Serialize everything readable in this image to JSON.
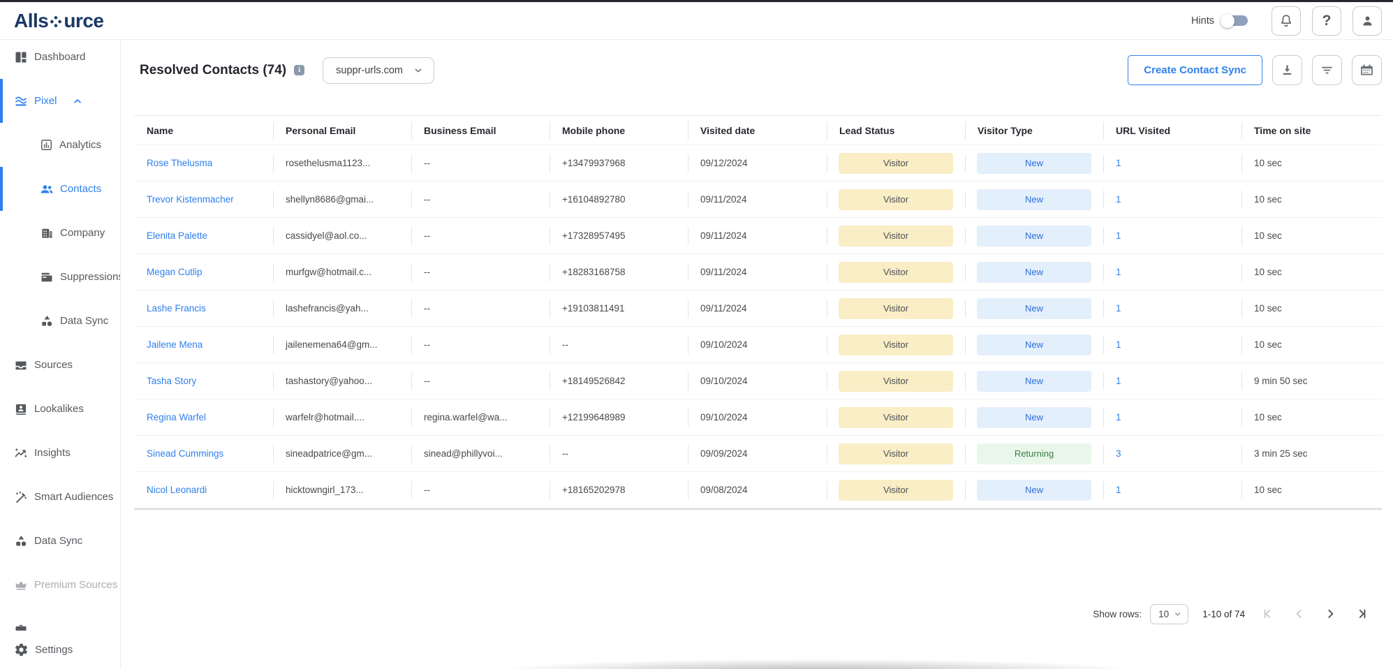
{
  "colors": {
    "brand_navy": "#1B3866",
    "accent_blue": "#2F80ED",
    "pill_visitor_bg": "#FAEEC6",
    "pill_new_bg": "#E4EFFC",
    "pill_new_text": "#2C6FDC",
    "pill_returning_bg": "#E9F7EB",
    "pill_returning_text": "#3A7D3F"
  },
  "topbar": {
    "logo_pre": "Alls",
    "logo_post": "urce",
    "hints_label": "Hints",
    "hints_on": false
  },
  "sidebar": {
    "items": [
      {
        "label": "Dashboard",
        "icon": "dashboard",
        "indent": false,
        "active": false
      },
      {
        "label": "Pixel",
        "icon": "waves",
        "indent": false,
        "active": true,
        "expanded": true
      },
      {
        "label": "Analytics",
        "icon": "bar-chart",
        "indent": true,
        "active": false
      },
      {
        "label": "Contacts",
        "icon": "people",
        "indent": true,
        "active": true
      },
      {
        "label": "Company",
        "icon": "building",
        "indent": true,
        "active": false
      },
      {
        "label": "Suppressions",
        "icon": "wallet",
        "indent": true,
        "active": false
      },
      {
        "label": "Data Sync",
        "icon": "shapes",
        "indent": true,
        "active": false
      },
      {
        "label": "Sources",
        "icon": "inbox",
        "indent": false,
        "active": false
      },
      {
        "label": "Lookalikes",
        "icon": "contact-card",
        "indent": false,
        "active": false
      },
      {
        "label": "Insights",
        "icon": "trend",
        "indent": false,
        "active": false
      },
      {
        "label": "Smart Audiences",
        "icon": "wand",
        "indent": false,
        "active": false
      },
      {
        "label": "Data Sync",
        "icon": "shapes",
        "indent": false,
        "active": false
      },
      {
        "label": "Premium Sources",
        "icon": "crown",
        "indent": false,
        "active": false,
        "disabled": true
      },
      {
        "label": "",
        "icon": "briefcase",
        "indent": false,
        "active": false,
        "clipped": true
      }
    ],
    "settings": {
      "label": "Settings",
      "icon": "gear"
    }
  },
  "header": {
    "title": "Resolved Contacts (74)",
    "domain": "suppr-urls.com",
    "create_button": "Create Contact Sync"
  },
  "table": {
    "columns": [
      {
        "key": "name",
        "label": "Name"
      },
      {
        "key": "personal_email",
        "label": "Personal Email"
      },
      {
        "key": "business_email",
        "label": "Business Email"
      },
      {
        "key": "mobile_phone",
        "label": "Mobile phone"
      },
      {
        "key": "visited_date",
        "label": "Visited date"
      },
      {
        "key": "lead_status",
        "label": "Lead Status"
      },
      {
        "key": "visitor_type",
        "label": "Visitor Type"
      },
      {
        "key": "url_visited",
        "label": "URL Visited"
      },
      {
        "key": "time_on_site",
        "label": "Time on site"
      }
    ],
    "rows": [
      {
        "name": "Rose Thelusma",
        "personal_email": "rosethelusma1123...",
        "business_email": "--",
        "mobile_phone": "+13479937968",
        "visited_date": "09/12/2024",
        "lead_status": "Visitor",
        "visitor_type": "New",
        "url_visited": "1",
        "time_on_site": "10 sec"
      },
      {
        "name": "Trevor Kistenmacher",
        "personal_email": "shellyn8686@gmai...",
        "business_email": "--",
        "mobile_phone": "+16104892780",
        "visited_date": "09/11/2024",
        "lead_status": "Visitor",
        "visitor_type": "New",
        "url_visited": "1",
        "time_on_site": "10 sec"
      },
      {
        "name": "Elenita Palette",
        "personal_email": "cassidyel@aol.co...",
        "business_email": "--",
        "mobile_phone": "+17328957495",
        "visited_date": "09/11/2024",
        "lead_status": "Visitor",
        "visitor_type": "New",
        "url_visited": "1",
        "time_on_site": "10 sec"
      },
      {
        "name": "Megan Cutlip",
        "personal_email": "murfgw@hotmail.c...",
        "business_email": "--",
        "mobile_phone": "+18283168758",
        "visited_date": "09/11/2024",
        "lead_status": "Visitor",
        "visitor_type": "New",
        "url_visited": "1",
        "time_on_site": "10 sec"
      },
      {
        "name": "Lashe Francis",
        "personal_email": "lashefrancis@yah...",
        "business_email": "--",
        "mobile_phone": "+19103811491",
        "visited_date": "09/11/2024",
        "lead_status": "Visitor",
        "visitor_type": "New",
        "url_visited": "1",
        "time_on_site": "10 sec"
      },
      {
        "name": "Jailene Mena",
        "personal_email": "jailenemena64@gm...",
        "business_email": "--",
        "mobile_phone": "--",
        "visited_date": "09/10/2024",
        "lead_status": "Visitor",
        "visitor_type": "New",
        "url_visited": "1",
        "time_on_site": "10 sec"
      },
      {
        "name": "Tasha Story",
        "personal_email": "tashastory@yahoo...",
        "business_email": "--",
        "mobile_phone": "+18149526842",
        "visited_date": "09/10/2024",
        "lead_status": "Visitor",
        "visitor_type": "New",
        "url_visited": "1",
        "time_on_site": "9 min 50 sec"
      },
      {
        "name": "Regina Warfel",
        "personal_email": "warfelr@hotmail....",
        "business_email": "regina.warfel@wa...",
        "mobile_phone": "+12199648989",
        "visited_date": "09/10/2024",
        "lead_status": "Visitor",
        "visitor_type": "New",
        "url_visited": "1",
        "time_on_site": "10 sec"
      },
      {
        "name": "Sinead Cummings",
        "personal_email": "sineadpatrice@gm...",
        "business_email": "sinead@phillyvoi...",
        "mobile_phone": "--",
        "visited_date": "09/09/2024",
        "lead_status": "Visitor",
        "visitor_type": "Returning",
        "url_visited": "3",
        "time_on_site": "3 min 25 sec"
      },
      {
        "name": "Nicol Leonardi",
        "personal_email": "hicktowngirl_173...",
        "business_email": "--",
        "mobile_phone": "+18165202978",
        "visited_date": "09/08/2024",
        "lead_status": "Visitor",
        "visitor_type": "New",
        "url_visited": "1",
        "time_on_site": "10 sec"
      }
    ]
  },
  "pagination": {
    "show_rows_label": "Show rows:",
    "page_size": "10",
    "range": "1-10 of 74"
  }
}
